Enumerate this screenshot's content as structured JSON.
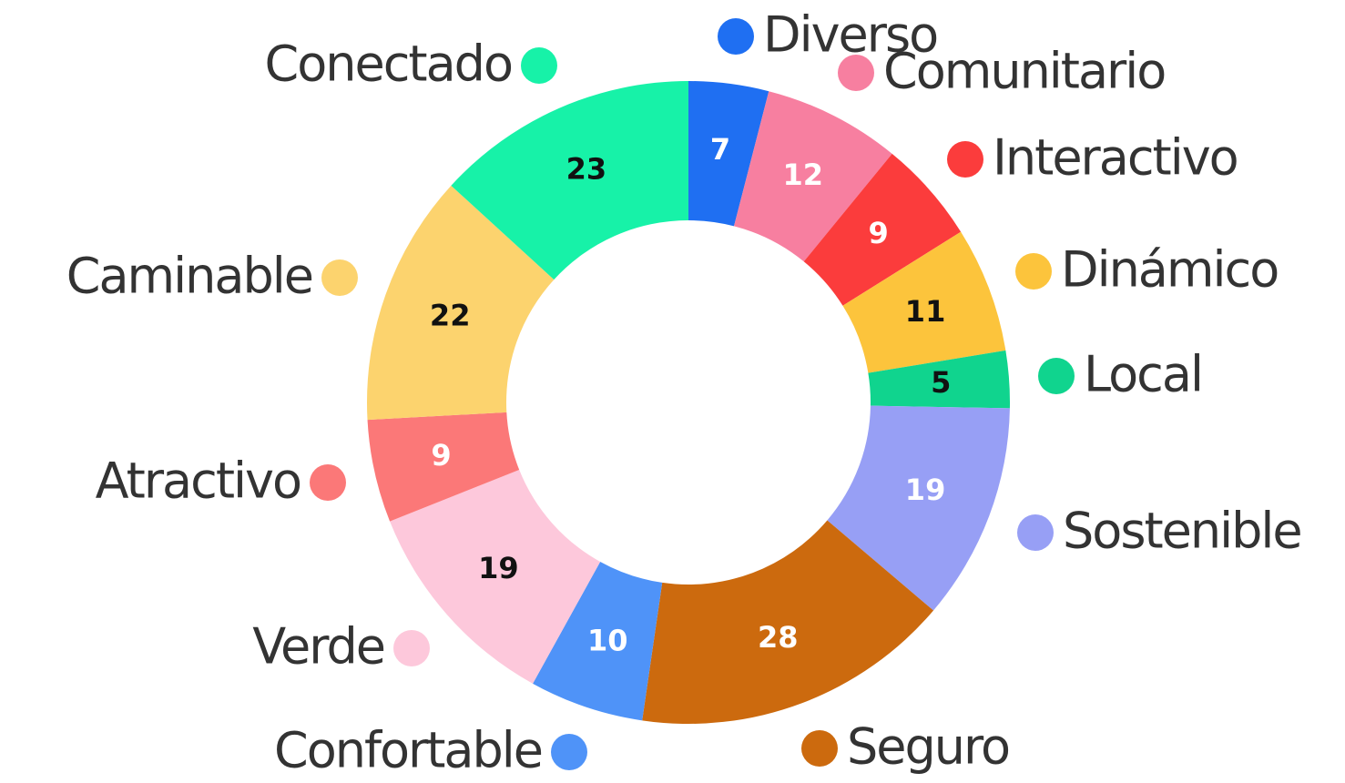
{
  "chart_data": {
    "type": "donut",
    "categories": [
      "Diverso",
      "Comunitario",
      "Interactivo",
      "Dinámico",
      "Local",
      "Sostenible",
      "Seguro",
      "Confortable",
      "Verde",
      "Atractivo",
      "Caminable",
      "Conectado"
    ],
    "values": [
      7,
      12,
      9,
      11,
      5,
      19,
      28,
      10,
      19,
      9,
      22,
      23
    ],
    "colors": [
      "#1f6ff2",
      "#f77fa0",
      "#fb3c3c",
      "#fcc43c",
      "#10d48e",
      "#979ff5",
      "#cc6a0e",
      "#4f93f8",
      "#fdc8db",
      "#fb7878",
      "#fcd36e",
      "#17f2a8"
    ],
    "label_colors": [
      "#ffffff",
      "#ffffff",
      "#ffffff",
      "#111111",
      "#111111",
      "#ffffff",
      "#ffffff",
      "#ffffff",
      "#111111",
      "#ffffff",
      "#111111",
      "#111111"
    ]
  }
}
